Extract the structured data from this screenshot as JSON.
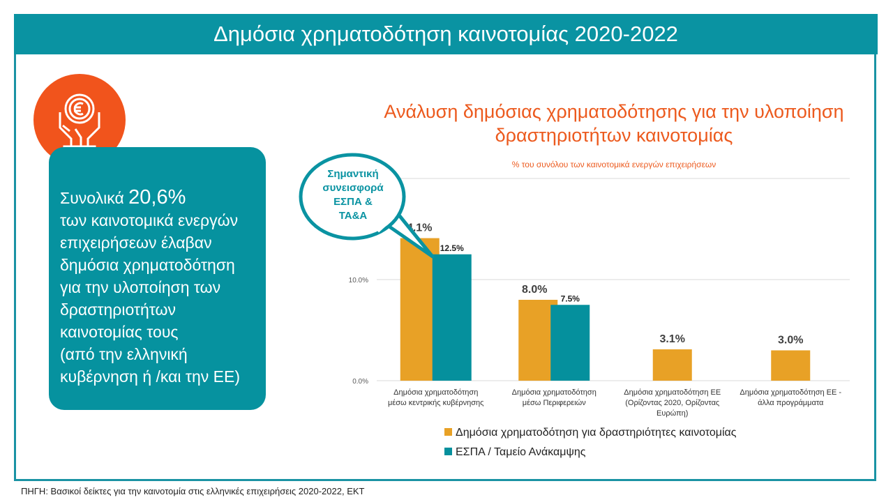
{
  "header": {
    "title": "Δημόσια χρηματοδότηση καινοτομίας 2020-2022"
  },
  "icon": "hands-holding-euro-coin-icon",
  "summary": {
    "prefix": "Συνολικά ",
    "value": "20,6%",
    "lines": [
      "των καινοτομικά ενεργών",
      "επιχειρήσεων έλαβαν",
      "δημόσια χρηματοδότηση",
      "για την υλοποίηση των",
      "δραστηριοτήτων",
      "καινοτομίας τους",
      "(από την ελληνική",
      "κυβέρνηση ή /και την ΕΕ)"
    ]
  },
  "callout": {
    "lines": [
      "Σημαντική",
      "συνεισφορά",
      "ΕΣΠΑ &",
      "ΤΑ&Α"
    ]
  },
  "source": "ΠΗΓΗ: Βασικοί δείκτες για την καινοτομία στις ελληνικές επιχειρήσεις 2020-2022, ΕΚΤ",
  "chart_data": {
    "type": "bar",
    "title": "Ανάλυση δημόσιας χρηματοδότησης για την υλοποίηση δραστηριοτήτων καινοτομίας",
    "subtitle": "% του συνόλου των καινοτομικά ενεργών επιχειρήσεων",
    "categories": [
      [
        "Δημόσια χρηματοδότηση",
        "μέσω κεντρικής κυβέρνησης"
      ],
      [
        "Δημόσια χρηματοδότηση",
        "μέσω Περιφερειών"
      ],
      [
        "Δημόσια χρηματοδότηση ΕΕ",
        "(Ορίζοντας 2020, Ορίζοντας",
        "Ευρώπη)"
      ],
      [
        "Δημόσια χρηματοδότηση ΕΕ -",
        "άλλα προγράμματα"
      ]
    ],
    "series": [
      {
        "name": "Δημόσια χρηματοδότηση για δραστηριότητες καινοτομίας",
        "color": "#e8a126",
        "values": [
          14.1,
          8.0,
          3.1,
          3.0
        ],
        "labels": [
          "14.1%",
          "8.0%",
          "3.1%",
          "3.0%"
        ]
      },
      {
        "name": "ΕΣΠΑ / Ταμείο Ανάκαμψης",
        "color": "#05909d",
        "values": [
          12.5,
          7.5,
          null,
          null
        ],
        "labels": [
          "12.5%",
          "7.5%",
          null,
          null
        ]
      }
    ],
    "yticks": [
      {
        "v": 0,
        "label": "0.0%"
      },
      {
        "v": 10,
        "label": "10.0%"
      },
      {
        "v": 20,
        "label": ""
      }
    ],
    "ylim": [
      0,
      20
    ],
    "grid": true,
    "legend": "bottom"
  }
}
